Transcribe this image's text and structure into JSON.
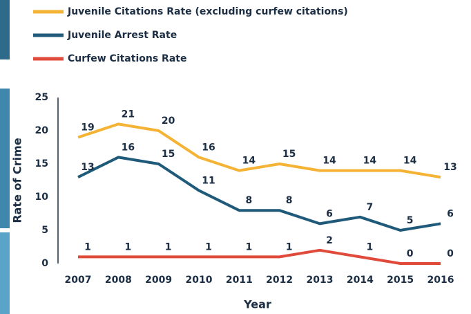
{
  "chart_data": {
    "type": "line",
    "xlabel": "Year",
    "ylabel": "Rate of Crime",
    "categories": [
      "2007",
      "2008",
      "2009",
      "2010",
      "2011",
      "2012",
      "2013",
      "2014",
      "2015",
      "2016"
    ],
    "series": [
      {
        "name": "Juvenile Citations Rate (excluding curfew citations)",
        "color": "#f5b335",
        "values": [
          19,
          21,
          20,
          16,
          14,
          15,
          14,
          14,
          14,
          13
        ]
      },
      {
        "name": "Juvenile Arrest Rate",
        "color": "#1f5a7a",
        "values": [
          13,
          16,
          15,
          11,
          8,
          8,
          6,
          7,
          5,
          6
        ]
      },
      {
        "name": "Curfew Citations Rate",
        "color": "#e04a3a",
        "values": [
          1,
          1,
          1,
          1,
          1,
          1,
          2,
          1,
          0,
          0
        ]
      }
    ],
    "ylim": [
      0,
      25
    ],
    "yticks": [
      0,
      5,
      10,
      15,
      20,
      25
    ],
    "grid": false
  }
}
